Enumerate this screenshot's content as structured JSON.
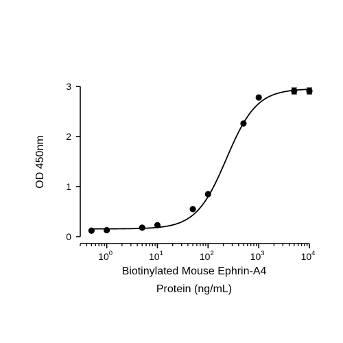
{
  "chart_data": {
    "type": "scatter",
    "xlabel": "Biotinylated Mouse Ephrin-A4",
    "xlabel_line2": "Protein (ng/mL)",
    "ylabel": "OD 450nm",
    "x_scale": "log",
    "xlim": [
      0.3,
      10000
    ],
    "ylim": [
      0,
      3
    ],
    "x_ticks": [
      {
        "value": 1,
        "base": "10",
        "exp": "0"
      },
      {
        "value": 10,
        "base": "10",
        "exp": "1"
      },
      {
        "value": 100,
        "base": "10",
        "exp": "2"
      },
      {
        "value": 1000,
        "base": "10",
        "exp": "3"
      },
      {
        "value": 10000,
        "base": "10",
        "exp": "4"
      }
    ],
    "y_ticks": [
      {
        "value": 0,
        "label": "0"
      },
      {
        "value": 1,
        "label": "1"
      },
      {
        "value": 2,
        "label": "2"
      },
      {
        "value": 3,
        "label": "3"
      }
    ],
    "grid": false,
    "legend": "none",
    "series": [
      {
        "points": [
          {
            "x": 0.5,
            "y": 0.12
          },
          {
            "x": 1,
            "y": 0.13
          },
          {
            "x": 5,
            "y": 0.18
          },
          {
            "x": 10,
            "y": 0.23
          },
          {
            "x": 50,
            "y": 0.55
          },
          {
            "x": 100,
            "y": 0.85
          },
          {
            "x": 500,
            "y": 2.26
          },
          {
            "x": 1000,
            "y": 2.78
          },
          {
            "x": 5000,
            "y": 2.91,
            "err": 0.06
          },
          {
            "x": 10000,
            "y": 2.91,
            "err": 0.06
          }
        ],
        "fit": {
          "model": "4PL",
          "bottom": 0.155,
          "top": 2.955,
          "ec50": 230,
          "hill": 1.45
        }
      }
    ],
    "colors": {
      "line": "#000000",
      "marker": "#000000"
    }
  }
}
